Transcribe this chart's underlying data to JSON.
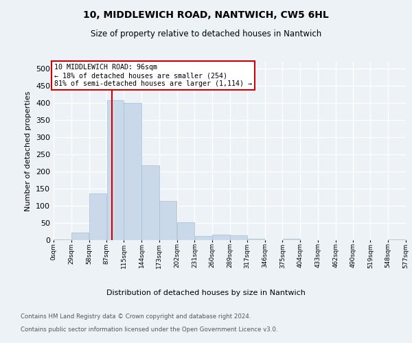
{
  "title": "10, MIDDLEWICH ROAD, NANTWICH, CW5 6HL",
  "subtitle": "Size of property relative to detached houses in Nantwich",
  "xlabel": "Distribution of detached houses by size in Nantwich",
  "ylabel": "Number of detached properties",
  "bin_edges": [
    0,
    29,
    58,
    87,
    115,
    144,
    173,
    202,
    231,
    260,
    289,
    317,
    346,
    375,
    404,
    433,
    462,
    490,
    519,
    548,
    577
  ],
  "bar_heights": [
    3,
    22,
    137,
    408,
    399,
    217,
    114,
    53,
    12,
    16,
    15,
    5,
    1,
    4,
    1,
    0,
    0,
    0,
    0,
    3
  ],
  "bar_color": "#c9d9ea",
  "bar_edgecolor": "#a8bdd4",
  "property_size": 96,
  "red_line_color": "#cc0000",
  "annotation_text": "10 MIDDLEWICH ROAD: 96sqm\n← 18% of detached houses are smaller (254)\n81% of semi-detached houses are larger (1,114) →",
  "annotation_box_edgecolor": "#cc0000",
  "ylim": [
    0,
    520
  ],
  "yticks": [
    0,
    50,
    100,
    150,
    200,
    250,
    300,
    350,
    400,
    450,
    500
  ],
  "bg_color": "#edf2f7",
  "grid_color": "#ffffff",
  "footer_line1": "Contains HM Land Registry data © Crown copyright and database right 2024.",
  "footer_line2": "Contains public sector information licensed under the Open Government Licence v3.0.",
  "tick_labels": [
    "0sqm",
    "29sqm",
    "58sqm",
    "87sqm",
    "115sqm",
    "144sqm",
    "173sqm",
    "202sqm",
    "231sqm",
    "260sqm",
    "289sqm",
    "317sqm",
    "346sqm",
    "375sqm",
    "404sqm",
    "433sqm",
    "462sqm",
    "490sqm",
    "519sqm",
    "548sqm",
    "577sqm"
  ]
}
